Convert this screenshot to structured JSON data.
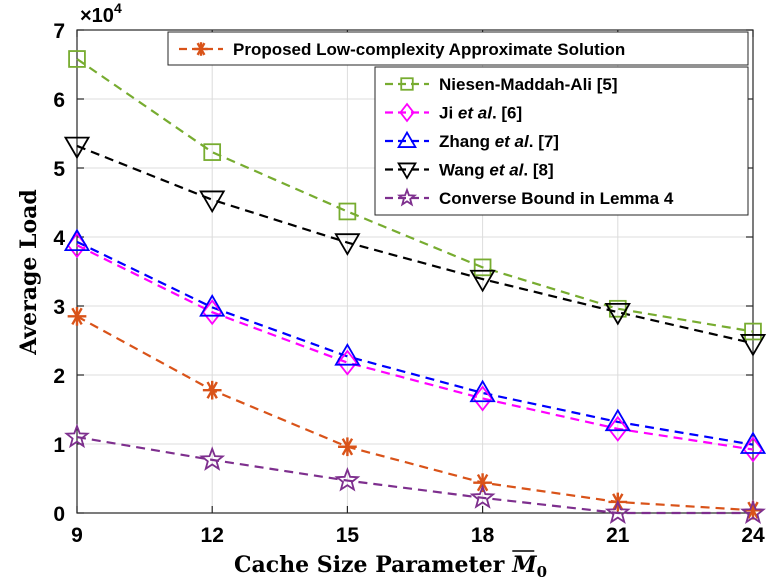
{
  "chart_data": {
    "type": "line",
    "title": "",
    "xlabel": "Cache Size Parameter",
    "xlabel_symbol": "M",
    "xlabel_subscript": "0",
    "ylabel": "Average Load",
    "y_multiplier": "×10",
    "y_multiplier_exp": "4",
    "x": [
      9,
      12,
      15,
      18,
      21,
      24
    ],
    "xlim": [
      9,
      24
    ],
    "ylim": [
      0,
      7
    ],
    "xticks": [
      "9",
      "12",
      "15",
      "18",
      "21",
      "24"
    ],
    "yticks": [
      "0",
      "1",
      "2",
      "3",
      "4",
      "5",
      "6",
      "7"
    ],
    "grid": true,
    "series": [
      {
        "name": "Proposed Low-complexity Approximate Solution",
        "color": "#d95319",
        "marker": "asterisk",
        "values": [
          2.85,
          1.78,
          0.96,
          0.44,
          0.16,
          0.04
        ]
      },
      {
        "name": "Niesen-Maddah-Ali [5]",
        "color": "#77ac30",
        "marker": "square",
        "values": [
          6.58,
          5.23,
          4.37,
          3.56,
          2.96,
          2.63
        ]
      },
      {
        "name": "Ji et al. [6]",
        "color": "#ff00ff",
        "marker": "diamond",
        "values": [
          3.88,
          2.91,
          2.18,
          1.66,
          1.22,
          0.92
        ]
      },
      {
        "name": "Zhang et al. [7]",
        "color": "#0000ff",
        "marker": "triangle-up",
        "values": [
          3.93,
          2.98,
          2.27,
          1.74,
          1.32,
          0.99
        ]
      },
      {
        "name": "Wang et al. [8]",
        "color": "#000000",
        "marker": "triangle-down",
        "values": [
          5.32,
          4.54,
          3.92,
          3.39,
          2.91,
          2.46
        ]
      },
      {
        "name": "Converse Bound in Lemma 4",
        "color": "#7e2f8e",
        "marker": "star",
        "values": [
          1.1,
          0.77,
          0.47,
          0.22,
          0.0,
          0.0
        ]
      }
    ],
    "legend": [
      {
        "prefix": "Proposed Low-complexity Approximate Solution",
        "italic": "",
        "suffix": ""
      },
      {
        "prefix": "Niesen-Maddah-Ali [5]",
        "italic": "",
        "suffix": ""
      },
      {
        "prefix": "Ji ",
        "italic": "et al",
        "suffix": ". [6]"
      },
      {
        "prefix": "Zhang ",
        "italic": "et al",
        "suffix": ". [7]"
      },
      {
        "prefix": "Wang ",
        "italic": "et al",
        "suffix": ". [8]"
      },
      {
        "prefix": "Converse Bound in Lemma 4",
        "italic": "",
        "suffix": ""
      }
    ]
  }
}
